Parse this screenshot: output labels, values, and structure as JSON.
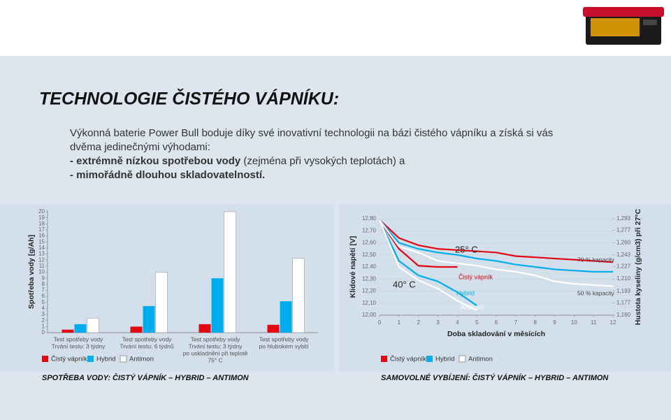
{
  "header": {
    "title": "TECHNOLOGIE ČISTÉHO VÁPNÍKU:",
    "intro": [
      [
        {
          "text": "Výkonná baterie Power Bull boduje díky své inovativní technologii na bázi čistého vápníku a získá si vás",
          "bold": false
        }
      ],
      [
        {
          "text": "dvěma jedinečnými výhodami:",
          "bold": false
        }
      ],
      [
        {
          "text": "- extrémně nízkou spotřebou vody",
          "bold": true
        },
        {
          "text": " (zejména při vysokých teplotách) a",
          "bold": false
        }
      ],
      [
        {
          "text": "- mimořádně dlouhou skladovatelností.",
          "bold": true
        }
      ]
    ]
  },
  "chart_data": [
    {
      "type": "bar",
      "y_label": "Spotřeba vody [g/Ah]",
      "categories": [
        [
          "Test spotřeby vody",
          "Trvání testu: 3 týdny"
        ],
        [
          "Test spotřeby vody",
          "Trvání testu: 6 týdnů"
        ],
        [
          "Test spotřeby vody",
          "Trvání testu: 3 týdny",
          "po uskladnění při teplotě",
          "75° C"
        ],
        [
          "Test spotřeby vody",
          "po hlubokém vybití"
        ]
      ],
      "series": [
        {
          "name": "Čistý vápník",
          "color": "#e30613",
          "values": [
            0.5,
            1.0,
            1.4,
            1.3
          ]
        },
        {
          "name": "Hybrid",
          "color": "#00aeef",
          "values": [
            1.4,
            4.4,
            9.0,
            5.2
          ]
        },
        {
          "name": "Antimon",
          "color": "#ffffff",
          "values": [
            2.4,
            10.0,
            20.0,
            12.3
          ]
        }
      ],
      "ylim": [
        0,
        20
      ],
      "yticks": [
        0,
        1,
        2,
        3,
        4,
        5,
        6,
        7,
        8,
        9,
        10,
        11,
        12,
        13,
        14,
        15,
        16,
        17,
        18,
        19,
        20
      ],
      "caption": "SPOTŘEBA VODY: ČISTÝ VÁPNÍK – HYBRID – ANTIMON"
    },
    {
      "type": "line",
      "x_label": "Doba skladování v měsících",
      "y_label": "Klidové napětí [V]",
      "y2_label": "Hustota kyseliny (g/cm3) při 27°C",
      "x": [
        0,
        1,
        2,
        3,
        4,
        5,
        6,
        7,
        8,
        9,
        10,
        11,
        12
      ],
      "xlim": [
        0,
        12
      ],
      "xticks": [
        0,
        1,
        2,
        3,
        4,
        5,
        6,
        7,
        8,
        9,
        10,
        11,
        12
      ],
      "ylim": [
        12.0,
        12.8
      ],
      "yticks": [
        {
          "value": 12.0,
          "label": "12,00"
        },
        {
          "value": 12.1,
          "label": "12,10"
        },
        {
          "value": 12.2,
          "label": "12,20"
        },
        {
          "value": 12.3,
          "label": "12,30"
        },
        {
          "value": 12.4,
          "label": "12,40"
        },
        {
          "value": 12.5,
          "label": "12,50"
        },
        {
          "value": 12.6,
          "label": "12,60"
        },
        {
          "value": 12.7,
          "label": "12,70"
        },
        {
          "value": 12.8,
          "label": "12,80"
        }
      ],
      "y2lim": [
        1.16,
        1.293
      ],
      "y2ticks": [
        {
          "value": 1.16,
          "label": "1,160"
        },
        {
          "value": 1.177,
          "label": "1,177"
        },
        {
          "value": 1.193,
          "label": "1,193"
        },
        {
          "value": 1.21,
          "label": "1,210"
        },
        {
          "value": 1.227,
          "label": "1,227"
        },
        {
          "value": 1.243,
          "label": "1,243"
        },
        {
          "value": 1.26,
          "label": "1,260"
        },
        {
          "value": 1.277,
          "label": "1,277"
        },
        {
          "value": 1.293,
          "label": "1,293"
        }
      ],
      "series": [
        {
          "name": "Čistý vápník",
          "color": "#e30613",
          "values": [
            12.79,
            12.64,
            12.58,
            12.55,
            12.54,
            12.53,
            12.52,
            12.49,
            12.48,
            12.47,
            12.46,
            12.45,
            12.44
          ],
          "values_40": [
            12.79,
            12.55,
            12.41,
            12.4,
            12.4,
            null,
            null,
            null,
            null,
            null,
            null,
            null,
            null
          ]
        },
        {
          "name": "Hybrid",
          "color": "#00aeef",
          "values": [
            12.79,
            12.6,
            12.55,
            12.52,
            12.5,
            12.47,
            12.45,
            12.42,
            12.4,
            12.38,
            12.37,
            12.36,
            12.36
          ],
          "values_40": [
            12.79,
            12.45,
            12.33,
            12.28,
            12.19,
            12.08,
            null,
            null,
            null,
            null,
            null,
            null,
            null
          ]
        },
        {
          "name": "Antimon",
          "color": "#ffffff",
          "values": [
            12.79,
            12.57,
            12.52,
            12.45,
            12.43,
            12.41,
            12.38,
            12.36,
            12.33,
            12.28,
            12.26,
            12.25,
            12.24
          ],
          "values_40": [
            12.79,
            12.4,
            12.29,
            12.22,
            12.12,
            12.04,
            null,
            null,
            null,
            null,
            null,
            null,
            null
          ]
        }
      ],
      "annotations": [
        "25° C",
        "40° C",
        "Čistý vápník",
        "Hybrid",
        "Antimon",
        "70 % kapacity",
        "50 % kapacity"
      ],
      "caption": "SAMOVOLNÉ VYBÍJENÍ: ČISTÝ VÁPNÍK – HYBRID – ANTIMON"
    }
  ]
}
